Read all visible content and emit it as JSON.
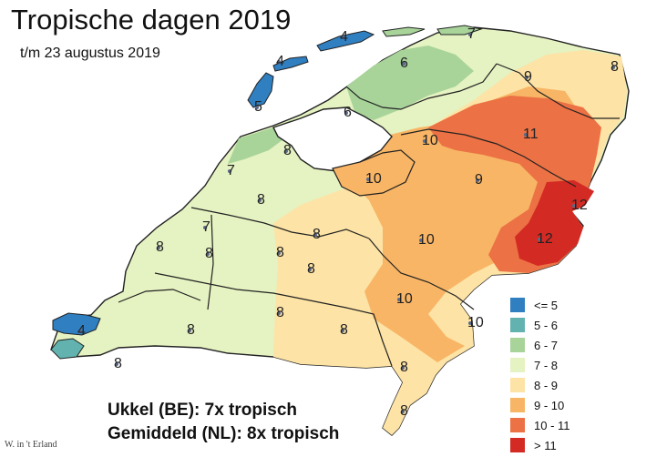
{
  "title": "Tropische dagen 2019",
  "subtitle": "t/m 23 augustus 2019",
  "summary": {
    "line1": "Ukkel (BE): 7x tropisch",
    "line2": "Gemiddeld (NL): 8x tropisch"
  },
  "credit": "W. in 't Erland",
  "legend": [
    {
      "label": "<= 5",
      "color": "#2f7fc1"
    },
    {
      "label": "5 - 6",
      "color": "#62b3b0"
    },
    {
      "label": "6 - 7",
      "color": "#a8d49a"
    },
    {
      "label": "7 - 8",
      "color": "#e5f2c1"
    },
    {
      "label": "8 - 9",
      "color": "#fde3a5"
    },
    {
      "label": "9 - 10",
      "color": "#f8b565"
    },
    {
      "label": "10 - 11",
      "color": "#ec7144"
    },
    {
      "label": "> 11",
      "color": "#d42a24"
    }
  ],
  "stations": [
    {
      "value": "4"
    },
    {
      "value": "4"
    },
    {
      "value": "7"
    },
    {
      "value": "6"
    },
    {
      "value": "9"
    },
    {
      "value": "8"
    },
    {
      "value": "5"
    },
    {
      "value": "6"
    },
    {
      "value": "10"
    },
    {
      "value": "11"
    },
    {
      "value": "8"
    },
    {
      "value": "7"
    },
    {
      "value": "10"
    },
    {
      "value": "9"
    },
    {
      "value": "8"
    },
    {
      "value": "12"
    },
    {
      "value": "7"
    },
    {
      "value": "8"
    },
    {
      "value": "12"
    },
    {
      "value": "8"
    },
    {
      "value": "8"
    },
    {
      "value": "10"
    },
    {
      "value": "8"
    },
    {
      "value": "8"
    },
    {
      "value": "10"
    },
    {
      "value": "8"
    },
    {
      "value": "10"
    },
    {
      "value": "4"
    },
    {
      "value": "8"
    },
    {
      "value": "8"
    },
    {
      "value": "8"
    },
    {
      "value": "8"
    },
    {
      "value": "8"
    }
  ]
}
